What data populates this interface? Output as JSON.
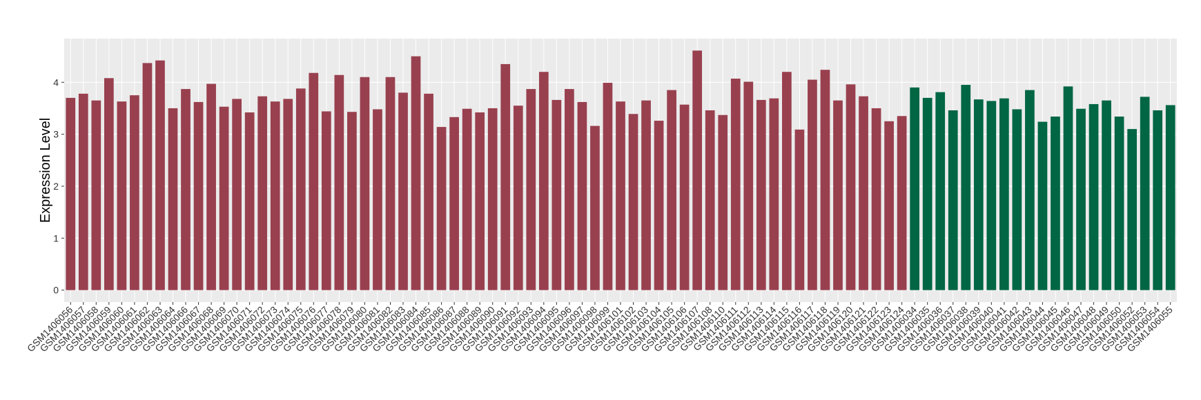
{
  "chart_data": {
    "type": "bar",
    "y_label": "Expression Level",
    "categories": [
      "GSM1406056",
      "GSM1406057",
      "GSM1406058",
      "GSM1406059",
      "GSM1406060",
      "GSM1406061",
      "GSM1406062",
      "GSM1406063",
      "GSM1406064",
      "GSM1406066",
      "GSM1406067",
      "GSM1406068",
      "GSM1406069",
      "GSM1406070",
      "GSM1406071",
      "GSM1406072",
      "GSM1406073",
      "GSM1406074",
      "GSM1406075",
      "GSM1406076",
      "GSM1406077",
      "GSM1406078",
      "GSM1406079",
      "GSM1406080",
      "GSM1406081",
      "GSM1406082",
      "GSM1406083",
      "GSM1406084",
      "GSM1406085",
      "GSM1406086",
      "GSM1406087",
      "GSM1406088",
      "GSM1406089",
      "GSM1406090",
      "GSM1406091",
      "GSM1406092",
      "GSM1406093",
      "GSM1406094",
      "GSM1406095",
      "GSM1406096",
      "GSM1406097",
      "GSM1406098",
      "GSM1406099",
      "GSM1406101",
      "GSM1406102",
      "GSM1406103",
      "GSM1406104",
      "GSM1406105",
      "GSM1406106",
      "GSM1406107",
      "GSM1406108",
      "GSM1406110",
      "GSM1406111",
      "GSM1406112",
      "GSM1406113",
      "GSM1406114",
      "GSM1406115",
      "GSM1406116",
      "GSM1406117",
      "GSM1406118",
      "GSM1406119",
      "GSM1406120",
      "GSM1406121",
      "GSM1406122",
      "GSM1406123",
      "GSM1406124",
      "GSM1406034",
      "GSM1406035",
      "GSM1406036",
      "GSM1406037",
      "GSM1406038",
      "GSM1406039",
      "GSM1406040",
      "GSM1406041",
      "GSM1406042",
      "GSM1406043",
      "GSM1406044",
      "GSM1406045",
      "GSM1406046",
      "GSM1406047",
      "GSM1406048",
      "GSM1406049",
      "GSM1406050",
      "GSM1406052",
      "GSM1406053",
      "GSM1406054",
      "GSM1406055"
    ],
    "values": [
      3.7,
      3.78,
      3.65,
      4.08,
      3.63,
      3.75,
      4.37,
      4.42,
      3.5,
      3.87,
      3.62,
      3.97,
      3.53,
      3.68,
      3.42,
      3.73,
      3.63,
      3.68,
      3.88,
      4.18,
      3.44,
      4.14,
      3.43,
      4.1,
      3.48,
      4.1,
      3.8,
      4.5,
      3.78,
      3.14,
      3.33,
      3.49,
      3.42,
      3.5,
      4.35,
      3.55,
      3.87,
      4.2,
      3.66,
      3.87,
      3.62,
      3.16,
      3.99,
      3.63,
      3.39,
      3.65,
      3.26,
      3.85,
      3.57,
      4.61,
      3.46,
      3.37,
      4.07,
      4.01,
      3.66,
      3.69,
      4.2,
      3.09,
      4.05,
      4.24,
      3.65,
      3.96,
      3.73,
      3.5,
      3.25,
      3.35,
      3.9,
      3.7,
      3.81,
      3.46,
      3.95,
      3.67,
      3.64,
      3.69,
      3.48,
      3.85,
      3.24,
      3.34,
      3.92,
      3.49,
      3.58,
      3.65,
      3.34,
      3.1,
      3.72,
      3.46,
      3.56
    ],
    "colors": [
      "#99404f",
      "#99404f",
      "#99404f",
      "#99404f",
      "#99404f",
      "#99404f",
      "#99404f",
      "#99404f",
      "#99404f",
      "#99404f",
      "#99404f",
      "#99404f",
      "#99404f",
      "#99404f",
      "#99404f",
      "#99404f",
      "#99404f",
      "#99404f",
      "#99404f",
      "#99404f",
      "#99404f",
      "#99404f",
      "#99404f",
      "#99404f",
      "#99404f",
      "#99404f",
      "#99404f",
      "#99404f",
      "#99404f",
      "#99404f",
      "#99404f",
      "#99404f",
      "#99404f",
      "#99404f",
      "#99404f",
      "#99404f",
      "#99404f",
      "#99404f",
      "#99404f",
      "#99404f",
      "#99404f",
      "#99404f",
      "#99404f",
      "#99404f",
      "#99404f",
      "#99404f",
      "#99404f",
      "#99404f",
      "#99404f",
      "#99404f",
      "#99404f",
      "#99404f",
      "#99404f",
      "#99404f",
      "#99404f",
      "#99404f",
      "#99404f",
      "#99404f",
      "#99404f",
      "#99404f",
      "#99404f",
      "#99404f",
      "#99404f",
      "#99404f",
      "#99404f",
      "#99404f",
      "#006644",
      "#006644",
      "#006644",
      "#006644",
      "#006644",
      "#006644",
      "#006644",
      "#006644",
      "#006644",
      "#006644",
      "#006644",
      "#006644",
      "#006644",
      "#006644",
      "#006644",
      "#006644",
      "#006644",
      "#006644",
      "#006644",
      "#006644",
      "#006644"
    ],
    "ylim": [
      -0.23,
      4.84
    ],
    "yticks": [
      0,
      1,
      2,
      3,
      4
    ],
    "grid": true
  }
}
